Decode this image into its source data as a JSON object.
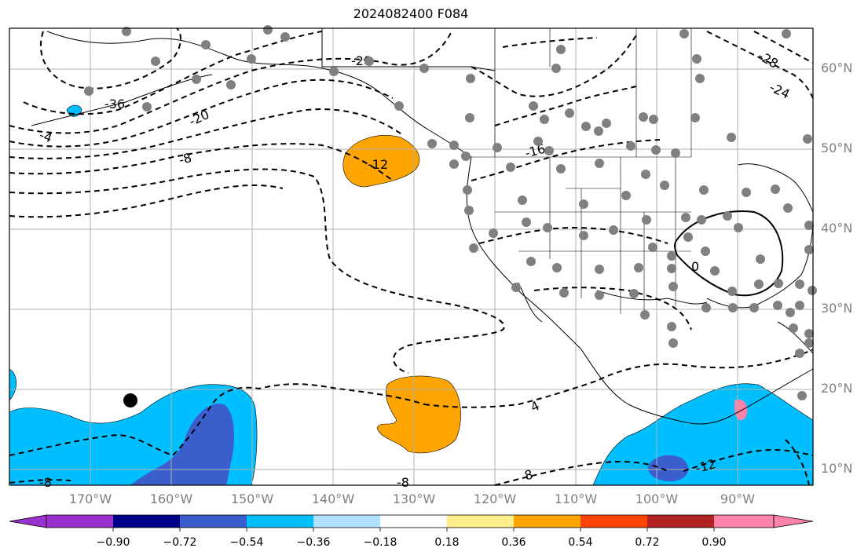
{
  "title": "2024082400 F084",
  "lat_labels": [
    "60°N",
    "50°N",
    "40°N",
    "30°N",
    "20°N",
    "10°N"
  ],
  "lon_labels": [
    "170°W",
    "160°W",
    "150°W",
    "140°W",
    "130°W",
    "120°W",
    "110°W",
    "100°W",
    "90°W"
  ],
  "colorbar": {
    "ticks": [
      "−0.90",
      "−0.72",
      "−0.54",
      "−0.36",
      "−0.18",
      "0.18",
      "0.36",
      "0.54",
      "0.72",
      "0.90"
    ],
    "colors": [
      "#9932cc",
      "#00008b",
      "#3a5fcd",
      "#00bfff",
      "#b0e2ff",
      "#ffffff",
      "#ffec8b",
      "#ffa500",
      "#ff4500",
      "#b22222",
      "#ff82ab"
    ]
  },
  "contour_labels": [
    "-36",
    "-28",
    "-24",
    "-28",
    "-20",
    "-4",
    "-8",
    "-12",
    "-16",
    "0",
    "4",
    "-8",
    "8",
    "-12",
    "-8"
  ],
  "colors": {
    "contour": "#000000",
    "grid": "#b0b0b0",
    "station": "#808080",
    "orange": "#ffa500",
    "blue": "#00bfff",
    "darkblue": "#3a5fcd",
    "lightblue": "#b0e2ff"
  }
}
